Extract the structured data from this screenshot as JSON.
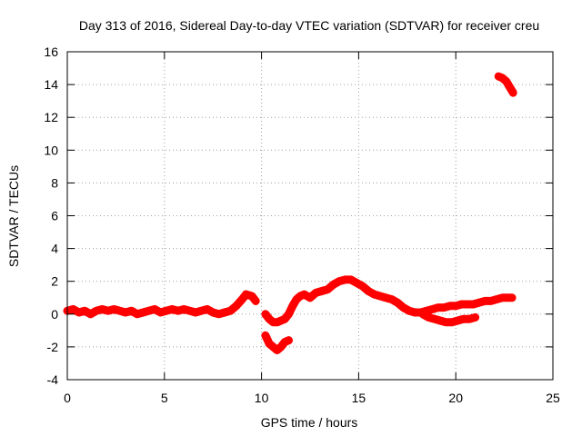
{
  "chart_data": {
    "type": "scatter",
    "title": "Day 313 of 2016, Sidereal Day-to-day VTEC variation (SDTVAR) for receiver creu",
    "xlabel": "GPS time / hours",
    "ylabel": "SDTVAR / TECUs",
    "xlim": [
      0,
      25
    ],
    "ylim": [
      -4,
      16
    ],
    "xticks": [
      0,
      5,
      10,
      15,
      20,
      25
    ],
    "yticks": [
      -4,
      -2,
      0,
      2,
      4,
      6,
      8,
      10,
      12,
      14,
      16
    ],
    "grid": true,
    "legend": "none",
    "series": [
      {
        "name": "SDTVAR",
        "color": "#ff0000",
        "marker": "plus",
        "segments": [
          [
            [
              0.0,
              0.2
            ],
            [
              0.3,
              0.3
            ],
            [
              0.6,
              0.1
            ],
            [
              0.9,
              0.2
            ],
            [
              1.2,
              0.0
            ],
            [
              1.5,
              0.2
            ],
            [
              1.8,
              0.3
            ],
            [
              2.1,
              0.2
            ],
            [
              2.4,
              0.3
            ],
            [
              2.7,
              0.2
            ],
            [
              3.0,
              0.1
            ],
            [
              3.3,
              0.2
            ],
            [
              3.6,
              0.0
            ],
            [
              3.9,
              0.1
            ],
            [
              4.2,
              0.2
            ],
            [
              4.5,
              0.3
            ],
            [
              4.8,
              0.1
            ],
            [
              5.1,
              0.2
            ],
            [
              5.4,
              0.3
            ],
            [
              5.7,
              0.2
            ],
            [
              6.0,
              0.3
            ],
            [
              6.3,
              0.2
            ],
            [
              6.6,
              0.1
            ],
            [
              6.9,
              0.2
            ],
            [
              7.2,
              0.3
            ],
            [
              7.5,
              0.1
            ],
            [
              7.8,
              0.0
            ],
            [
              8.1,
              0.1
            ],
            [
              8.4,
              0.2
            ],
            [
              8.7,
              0.5
            ],
            [
              9.0,
              0.9
            ],
            [
              9.2,
              1.2
            ],
            [
              9.5,
              1.1
            ],
            [
              9.7,
              0.8
            ]
          ],
          [
            [
              10.2,
              0.0
            ],
            [
              10.4,
              -0.3
            ],
            [
              10.6,
              -0.5
            ],
            [
              10.8,
              -0.5
            ],
            [
              11.0,
              -0.4
            ],
            [
              11.2,
              -0.3
            ],
            [
              11.4,
              0.0
            ],
            [
              11.6,
              0.5
            ],
            [
              11.8,
              0.9
            ],
            [
              12.0,
              1.1
            ],
            [
              12.2,
              1.2
            ],
            [
              12.5,
              1.0
            ],
            [
              12.8,
              1.3
            ],
            [
              13.1,
              1.4
            ],
            [
              13.4,
              1.5
            ],
            [
              13.7,
              1.8
            ],
            [
              14.0,
              2.0
            ],
            [
              14.3,
              2.1
            ],
            [
              14.6,
              2.1
            ],
            [
              14.9,
              1.9
            ],
            [
              15.2,
              1.7
            ],
            [
              15.5,
              1.4
            ],
            [
              15.8,
              1.2
            ],
            [
              16.1,
              1.1
            ],
            [
              16.4,
              1.0
            ],
            [
              16.7,
              0.9
            ],
            [
              17.0,
              0.7
            ],
            [
              17.3,
              0.4
            ],
            [
              17.6,
              0.2
            ],
            [
              17.9,
              0.1
            ],
            [
              18.2,
              0.1
            ],
            [
              18.5,
              0.2
            ],
            [
              18.8,
              0.3
            ],
            [
              19.1,
              0.4
            ],
            [
              19.4,
              0.4
            ],
            [
              19.7,
              0.5
            ],
            [
              20.0,
              0.5
            ],
            [
              20.3,
              0.6
            ],
            [
              20.6,
              0.6
            ],
            [
              20.9,
              0.6
            ],
            [
              21.2,
              0.7
            ],
            [
              21.5,
              0.8
            ],
            [
              21.8,
              0.8
            ],
            [
              22.1,
              0.9
            ],
            [
              22.4,
              1.0
            ],
            [
              22.7,
              1.0
            ],
            [
              22.9,
              1.0
            ]
          ],
          [
            [
              10.2,
              -1.3
            ],
            [
              10.4,
              -1.8
            ],
            [
              10.6,
              -2.0
            ],
            [
              10.8,
              -2.2
            ],
            [
              11.0,
              -2.0
            ],
            [
              11.2,
              -1.7
            ],
            [
              11.4,
              -1.6
            ]
          ],
          [
            [
              18.3,
              0.0
            ],
            [
              18.6,
              -0.2
            ],
            [
              18.9,
              -0.3
            ],
            [
              19.2,
              -0.4
            ],
            [
              19.5,
              -0.5
            ],
            [
              19.8,
              -0.5
            ],
            [
              20.1,
              -0.4
            ],
            [
              20.4,
              -0.3
            ],
            [
              20.7,
              -0.3
            ],
            [
              21.0,
              -0.2
            ]
          ],
          [
            [
              22.2,
              14.5
            ],
            [
              22.4,
              14.4
            ],
            [
              22.6,
              14.2
            ],
            [
              22.8,
              13.8
            ],
            [
              22.95,
              13.5
            ]
          ]
        ]
      }
    ]
  }
}
